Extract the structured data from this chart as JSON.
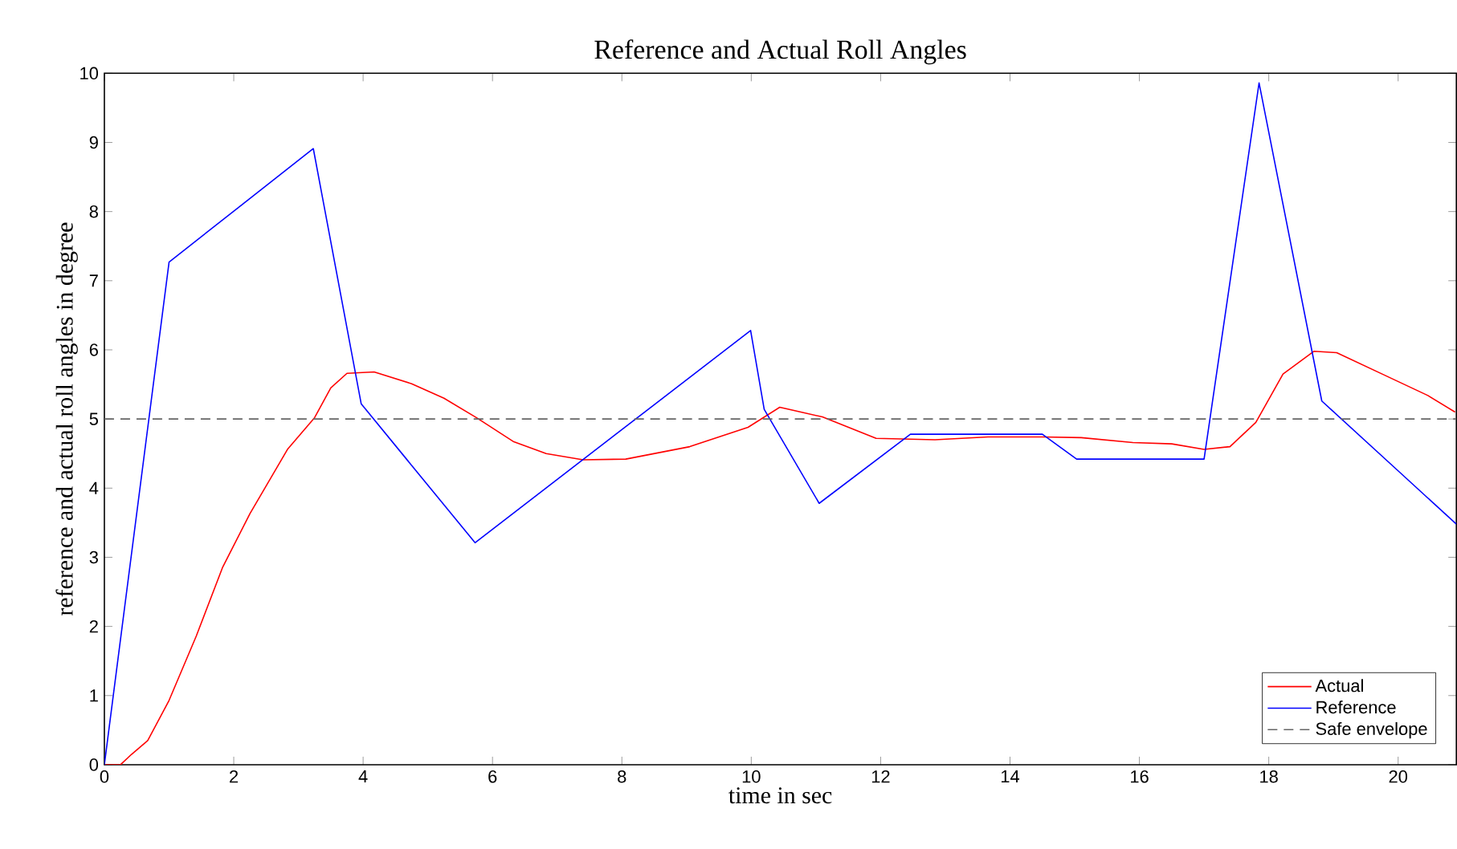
{
  "chart_data": {
    "type": "line",
    "title": "Reference and Actual Roll Angles",
    "xlabel": "time in sec",
    "ylabel": "reference and actual roll angles in degree",
    "xlim": [
      0,
      20.9
    ],
    "ylim": [
      0,
      10
    ],
    "xticks": [
      0,
      2,
      4,
      6,
      8,
      10,
      12,
      14,
      16,
      18,
      20
    ],
    "yticks": [
      0,
      1,
      2,
      3,
      4,
      5,
      6,
      7,
      8,
      9,
      10
    ],
    "grid": false,
    "legend": "bottom right",
    "marker": "none",
    "series": [
      {
        "name": "Actual",
        "color": "#ff0000",
        "line_style": "solid",
        "x": [
          0,
          0.25,
          0.42,
          0.67,
          1.0,
          1.42,
          1.83,
          2.25,
          2.83,
          3.25,
          3.5,
          3.75,
          4.17,
          4.75,
          5.25,
          5.75,
          6.33,
          6.83,
          7.4,
          8.06,
          9.05,
          9.95,
          10.44,
          11.1,
          11.93,
          12.84,
          13.66,
          14.5,
          15.1,
          15.9,
          16.5,
          17.0,
          17.4,
          17.8,
          18.22,
          18.7,
          19.05,
          19.8,
          20.46,
          20.88
        ],
        "values": [
          0,
          0,
          0.15,
          0.35,
          0.93,
          1.86,
          2.86,
          3.63,
          4.56,
          5.02,
          5.45,
          5.66,
          5.68,
          5.51,
          5.3,
          5.02,
          4.67,
          4.5,
          4.41,
          4.42,
          4.6,
          4.88,
          5.17,
          5.03,
          4.72,
          4.7,
          4.74,
          4.74,
          4.73,
          4.66,
          4.64,
          4.56,
          4.6,
          4.95,
          5.65,
          5.98,
          5.96,
          5.63,
          5.34,
          5.1
        ]
      },
      {
        "name": "Reference",
        "color": "#0000ff",
        "line_style": "solid",
        "x": [
          0,
          1.0,
          3.23,
          3.97,
          5.73,
          9.99,
          10.2,
          11.05,
          12.46,
          14.5,
          15.03,
          17.0,
          17.85,
          18.82,
          20.0,
          20.9
        ],
        "values": [
          0,
          7.27,
          8.91,
          5.22,
          3.21,
          6.28,
          5.14,
          3.78,
          4.78,
          4.78,
          4.42,
          4.42,
          9.86,
          5.26,
          4.25,
          3.48
        ]
      },
      {
        "name": "Safe envelope",
        "color": "#666666",
        "line_style": "dashed",
        "x": [
          0,
          20.9
        ],
        "values": [
          5,
          5
        ]
      }
    ]
  }
}
